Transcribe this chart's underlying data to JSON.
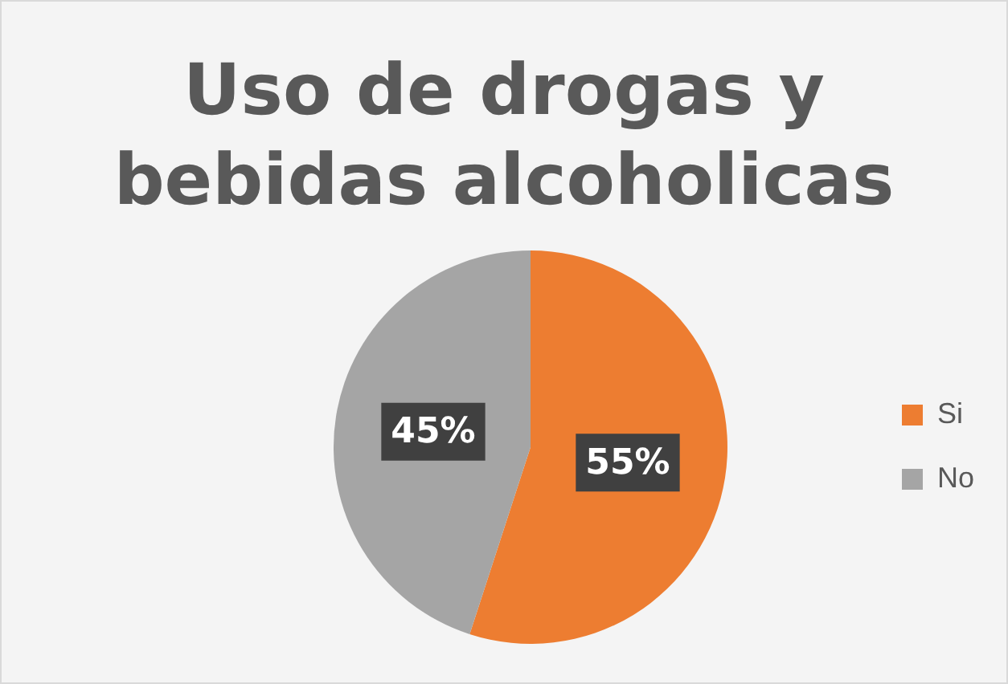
{
  "chart_data": {
    "type": "pie",
    "title": "Uso de drogas y bebidas alcoholicas",
    "categories": [
      "Si",
      "No"
    ],
    "values": [
      55,
      45
    ],
    "colors": [
      "#ed7d31",
      "#a5a5a5"
    ],
    "value_labels": [
      "55%",
      "45%"
    ],
    "legend": "right"
  }
}
